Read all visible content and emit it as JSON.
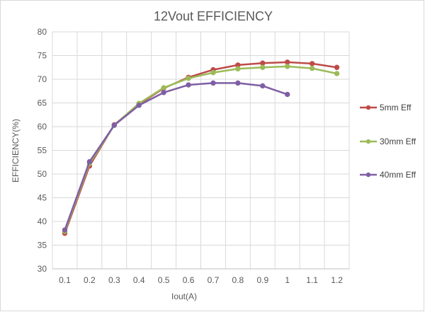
{
  "chart_data": {
    "type": "line",
    "title": "12Vout EFFICIENCY",
    "xlabel": "Iout(A)",
    "ylabel": "EFFICIENCY(%)",
    "categories": [
      "0.1",
      "0.2",
      "0.3",
      "0.4",
      "0.5",
      "0.6",
      "0.7",
      "0.8",
      "0.9",
      "1",
      "1.1",
      "1.2"
    ],
    "ylim": [
      30,
      80
    ],
    "yticks": [
      "30",
      "35",
      "40",
      "45",
      "50",
      "55",
      "60",
      "65",
      "70",
      "75",
      "80"
    ],
    "grid": true,
    "legend_position": "right",
    "series": [
      {
        "name": "5mm Eff",
        "color": "#be4b48",
        "values": [
          37.5,
          51.7,
          60.4,
          64.7,
          68.1,
          70.4,
          72.0,
          73.0,
          73.4,
          73.6,
          73.3,
          72.5
        ]
      },
      {
        "name": "30mm Eff",
        "color": "#9bbb59",
        "values": [
          37.9,
          52.2,
          60.3,
          64.9,
          68.2,
          70.2,
          71.4,
          72.2,
          72.5,
          72.7,
          72.3,
          71.2
        ]
      },
      {
        "name": "40mm Eff",
        "color": "#7e5fa4",
        "values": [
          38.2,
          52.6,
          60.3,
          64.5,
          67.2,
          68.8,
          69.2,
          69.2,
          68.6,
          66.8,
          null,
          null
        ]
      }
    ]
  }
}
